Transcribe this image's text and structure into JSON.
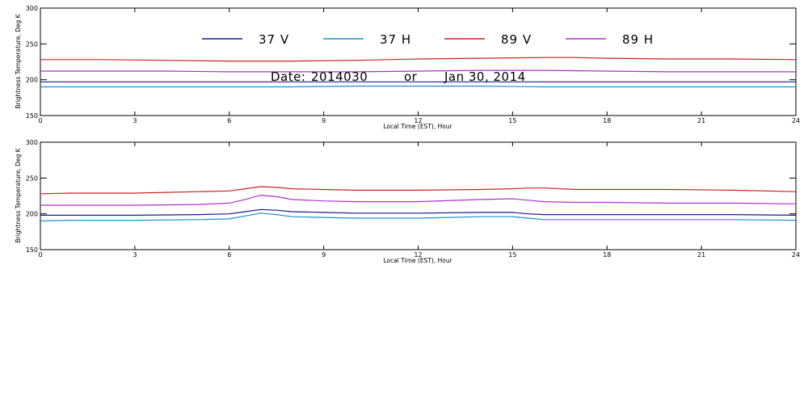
{
  "chart_data": [
    {
      "type": "line",
      "xlabel": "Local Time (EST), Hour",
      "ylabel": "Brightness Temperature, Deg K",
      "xlim": [
        0,
        24
      ],
      "ylim": [
        150,
        300
      ],
      "xticks": [
        0,
        3,
        6,
        9,
        12,
        15,
        18,
        21,
        24
      ],
      "yticks": [
        150,
        200,
        250,
        300
      ],
      "grid": false,
      "legend_position": "top-center",
      "date_annotation": {
        "date_label": "Date:",
        "date_code": "2014030",
        "separator": "or",
        "date_text": "Jan 30, 2014"
      },
      "series": [
        {
          "name": "37 V",
          "color": "#1a1a8c",
          "x": [
            0,
            2,
            4,
            6,
            8,
            10,
            12,
            14,
            16,
            18,
            20,
            22,
            24
          ],
          "y": [
            197,
            197,
            197,
            197,
            197,
            197,
            197,
            197,
            197,
            197,
            197,
            197,
            197
          ]
        },
        {
          "name": "37 H",
          "color": "#1e90c8",
          "x": [
            0,
            2,
            4,
            6,
            8,
            10,
            12,
            14,
            16,
            18,
            20,
            22,
            24
          ],
          "y": [
            190,
            190,
            190,
            190,
            190,
            191,
            191,
            191,
            190,
            190,
            190,
            190,
            190
          ]
        },
        {
          "name": "89 V",
          "color": "#cc2222",
          "x": [
            0,
            2,
            4,
            6,
            8,
            10,
            12,
            14,
            16,
            17,
            18,
            20,
            22,
            24
          ],
          "y": [
            228,
            228,
            227,
            226,
            226,
            227,
            229,
            230,
            231,
            231,
            230,
            229,
            229,
            228
          ]
        },
        {
          "name": "89 H",
          "color": "#b030c8",
          "x": [
            0,
            2,
            4,
            6,
            8,
            10,
            12,
            14,
            16,
            18,
            20,
            22,
            24
          ],
          "y": [
            212,
            212,
            212,
            211,
            211,
            211,
            212,
            213,
            213,
            212,
            211,
            211,
            211
          ]
        }
      ]
    },
    {
      "type": "line",
      "xlabel": "Local Time (EST), Hour",
      "ylabel": "Brightness Temperature, Deg K",
      "xlim": [
        0,
        24
      ],
      "ylim": [
        150,
        300
      ],
      "xticks": [
        0,
        3,
        6,
        9,
        12,
        15,
        18,
        21,
        24
      ],
      "yticks": [
        150,
        200,
        250,
        300
      ],
      "grid": false,
      "series": [
        {
          "color": "#1a1a8c",
          "x": [
            0,
            1,
            3,
            5,
            6,
            6.5,
            7,
            7.5,
            8,
            9,
            10,
            12,
            14,
            15,
            15.5,
            16,
            18,
            20,
            22,
            24
          ],
          "y": [
            198,
            198,
            198,
            199,
            200,
            203,
            206,
            205,
            203,
            202,
            201,
            201,
            202,
            202,
            200,
            199,
            199,
            199,
            199,
            198
          ]
        },
        {
          "color": "#1e90c8",
          "x": [
            0,
            1,
            3,
            5,
            6,
            6.5,
            7,
            7.5,
            8,
            9,
            10,
            12,
            14,
            15,
            15.5,
            16,
            18,
            20,
            22,
            24
          ],
          "y": [
            190,
            191,
            191,
            192,
            193,
            197,
            201,
            199,
            196,
            195,
            194,
            194,
            196,
            196,
            194,
            192,
            192,
            192,
            192,
            191
          ]
        },
        {
          "color": "#cc2222",
          "x": [
            0,
            1,
            3,
            5,
            6,
            6.5,
            7,
            7.5,
            8,
            9,
            10,
            12,
            14,
            15,
            15.5,
            16,
            17,
            18,
            20,
            22,
            24
          ],
          "y": [
            228,
            229,
            229,
            231,
            232,
            235,
            238,
            237,
            235,
            234,
            233,
            233,
            234,
            235,
            236,
            236,
            234,
            234,
            234,
            233,
            231
          ]
        },
        {
          "color": "#b030c8",
          "x": [
            0,
            1,
            3,
            5,
            6,
            6.5,
            7,
            7.5,
            8,
            9,
            10,
            12,
            14,
            15,
            15.5,
            16,
            17,
            18,
            20,
            22,
            24
          ],
          "y": [
            212,
            212,
            212,
            213,
            215,
            220,
            226,
            224,
            220,
            218,
            217,
            217,
            220,
            221,
            219,
            217,
            216,
            216,
            215,
            215,
            214
          ]
        }
      ]
    }
  ]
}
